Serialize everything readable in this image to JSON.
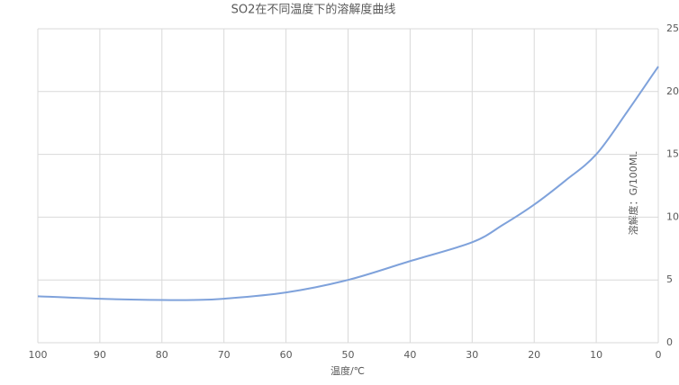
{
  "chart_data": {
    "type": "line",
    "title": "SO2在不同温度下的溶解度曲线",
    "x_label": "温度/℃",
    "y_label": "溶解度：G/100ML",
    "x": [
      100,
      90,
      80,
      75,
      70,
      60,
      50,
      40,
      30,
      25,
      20,
      15,
      10,
      5,
      0
    ],
    "series": [
      {
        "color": "#7fa2db",
        "values": [
          3.7,
          3.5,
          3.4,
          3.4,
          3.5,
          4.0,
          5.0,
          6.5,
          8.0,
          9.4,
          11.0,
          12.9,
          15.0,
          18.4,
          22.0
        ]
      }
    ],
    "xlim": [
      100,
      0
    ],
    "xticks": [
      100,
      90,
      80,
      70,
      60,
      50,
      40,
      30,
      20,
      10,
      0
    ],
    "ylim": [
      0,
      25
    ],
    "yticks": [
      0,
      5,
      10,
      15,
      20,
      25
    ],
    "grid": true
  }
}
